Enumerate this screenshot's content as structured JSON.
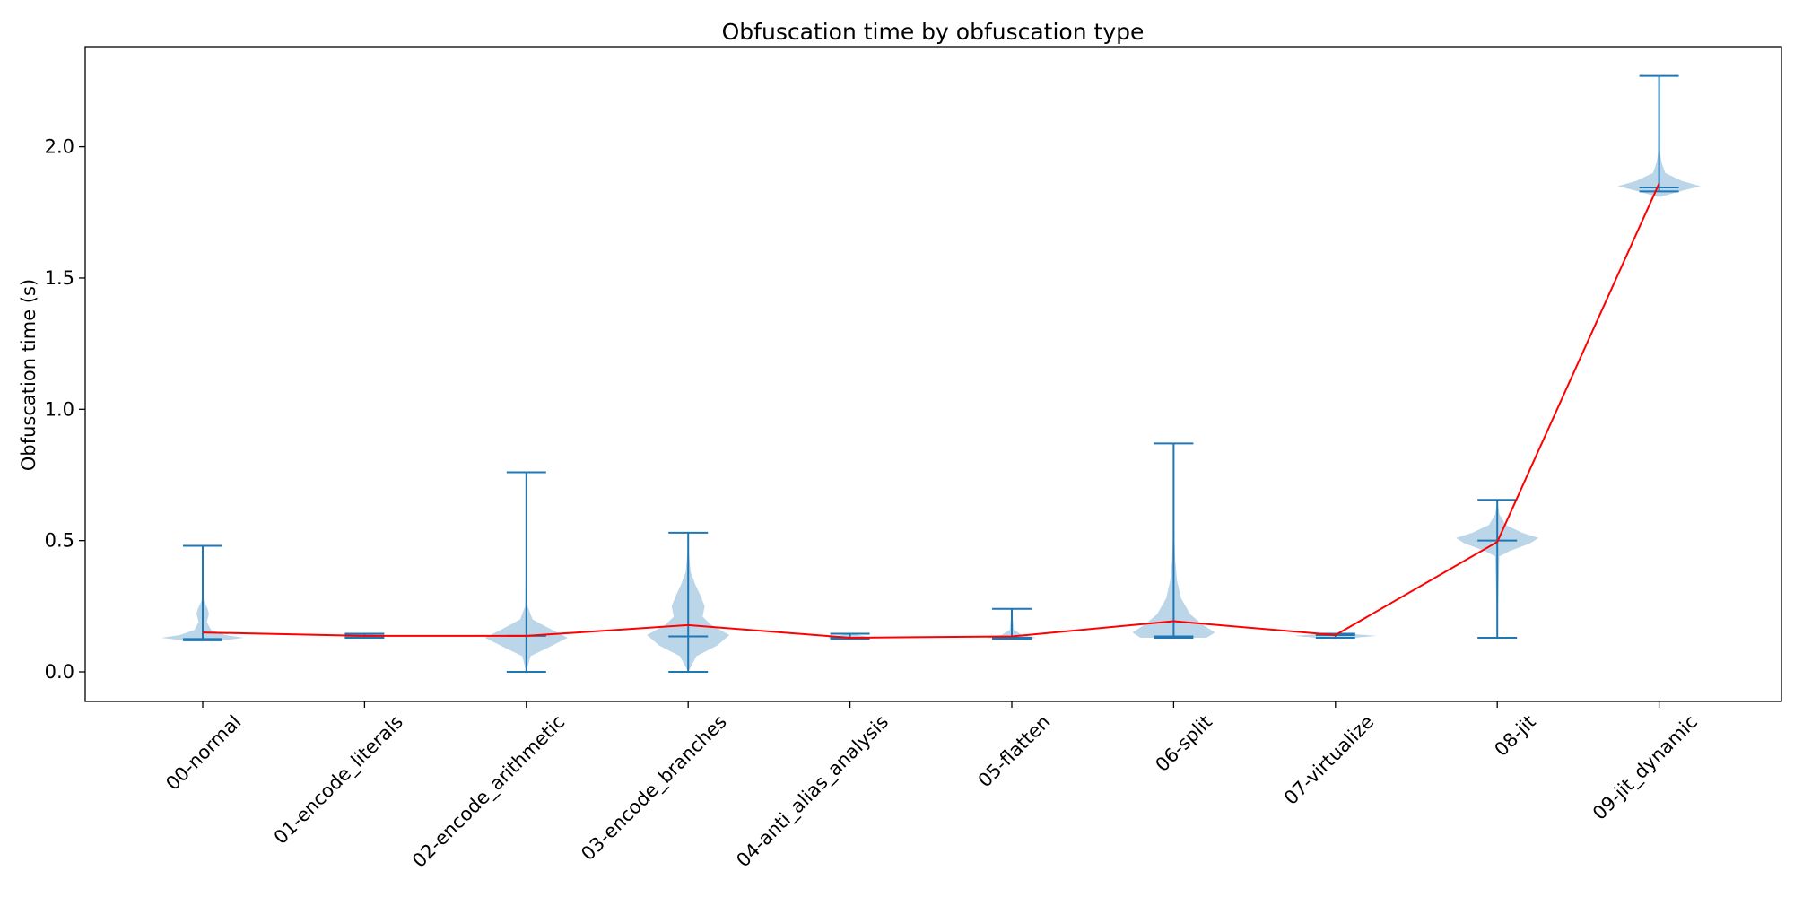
{
  "chart_data": {
    "type": "violin",
    "title": "Obfuscation time by obfuscation type",
    "xlabel": "",
    "ylabel": "Obfuscation time (s)",
    "ylim": [
      -0.11,
      2.38
    ],
    "yticks": [
      0.0,
      0.5,
      1.0,
      1.5,
      2.0
    ],
    "ytick_labels": [
      "0.0",
      "0.5",
      "1.0",
      "1.5",
      "2.0"
    ],
    "grid": false,
    "legend": "none",
    "colors": {
      "violin": "#1f77b4",
      "mean_line": "#ff0000"
    },
    "categories": [
      "00-normal",
      "01-encode_literals",
      "02-encode_arithmetic",
      "03-encode_branches",
      "04-anti_alias_analysis",
      "05-flatten",
      "06-split",
      "07-virtualize",
      "08-jit",
      "09-jit_dynamic"
    ],
    "series": [
      {
        "min": 0.12,
        "max": 0.48,
        "median": 0.125,
        "mean": 0.15,
        "density": [
          [
            0.12,
            0.5
          ],
          [
            0.13,
            1.0
          ],
          [
            0.14,
            0.55
          ],
          [
            0.16,
            0.2
          ],
          [
            0.19,
            0.1
          ],
          [
            0.22,
            0.15
          ],
          [
            0.24,
            0.12
          ],
          [
            0.27,
            0.03
          ],
          [
            0.3,
            0.01
          ],
          [
            0.48,
            0.0
          ]
        ]
      },
      {
        "min": 0.13,
        "max": 0.145,
        "median": 0.137,
        "mean": 0.137,
        "density": [
          [
            0.13,
            0.1
          ],
          [
            0.137,
            0.35
          ],
          [
            0.145,
            0.1
          ]
        ]
      },
      {
        "min": 0.0,
        "max": 0.76,
        "median": 0.137,
        "mean": 0.137,
        "density": [
          [
            0.0,
            0.0
          ],
          [
            0.06,
            0.1
          ],
          [
            0.09,
            0.5
          ],
          [
            0.13,
            1.0
          ],
          [
            0.17,
            0.5
          ],
          [
            0.2,
            0.15
          ],
          [
            0.25,
            0.03
          ],
          [
            0.4,
            0.01
          ],
          [
            0.76,
            0.0
          ]
        ]
      },
      {
        "min": 0.0,
        "max": 0.53,
        "median": 0.135,
        "mean": 0.178,
        "density": [
          [
            0.0,
            0.0
          ],
          [
            0.06,
            0.2
          ],
          [
            0.1,
            0.7
          ],
          [
            0.14,
            1.0
          ],
          [
            0.18,
            0.55
          ],
          [
            0.21,
            0.35
          ],
          [
            0.25,
            0.4
          ],
          [
            0.29,
            0.3
          ],
          [
            0.33,
            0.18
          ],
          [
            0.38,
            0.06
          ],
          [
            0.45,
            0.02
          ],
          [
            0.53,
            0.0
          ]
        ]
      },
      {
        "min": 0.125,
        "max": 0.145,
        "median": 0.13,
        "mean": 0.13,
        "density": [
          [
            0.125,
            0.4
          ],
          [
            0.13,
            0.55
          ],
          [
            0.137,
            0.3
          ],
          [
            0.145,
            0.05
          ]
        ]
      },
      {
        "min": 0.125,
        "max": 0.24,
        "median": 0.13,
        "mean": 0.135,
        "density": [
          [
            0.125,
            0.3
          ],
          [
            0.13,
            0.6
          ],
          [
            0.14,
            0.25
          ],
          [
            0.16,
            0.05
          ],
          [
            0.24,
            0.0
          ]
        ]
      },
      {
        "min": 0.13,
        "max": 0.87,
        "median": 0.135,
        "mean": 0.193,
        "density": [
          [
            0.13,
            0.8
          ],
          [
            0.15,
            1.0
          ],
          [
            0.18,
            0.7
          ],
          [
            0.22,
            0.4
          ],
          [
            0.28,
            0.18
          ],
          [
            0.35,
            0.08
          ],
          [
            0.42,
            0.04
          ],
          [
            0.55,
            0.01
          ],
          [
            0.87,
            0.0
          ]
        ]
      },
      {
        "min": 0.13,
        "max": 0.145,
        "median": 0.14,
        "mean": 0.14,
        "density": [
          [
            0.13,
            0.45
          ],
          [
            0.137,
            1.0
          ],
          [
            0.145,
            0.3
          ]
        ]
      },
      {
        "min": 0.13,
        "max": 0.655,
        "median": 0.5,
        "mean": 0.495,
        "density": [
          [
            0.13,
            0.0
          ],
          [
            0.44,
            0.05
          ],
          [
            0.46,
            0.3
          ],
          [
            0.49,
            0.8
          ],
          [
            0.51,
            1.0
          ],
          [
            0.53,
            0.6
          ],
          [
            0.56,
            0.2
          ],
          [
            0.6,
            0.05
          ],
          [
            0.655,
            0.0
          ]
        ]
      },
      {
        "min": 1.83,
        "max": 2.27,
        "median": 1.845,
        "mean": 1.86,
        "density": [
          [
            1.81,
            0.05
          ],
          [
            1.83,
            0.5
          ],
          [
            1.85,
            1.0
          ],
          [
            1.87,
            0.55
          ],
          [
            1.9,
            0.15
          ],
          [
            1.94,
            0.06
          ],
          [
            1.98,
            0.02
          ],
          [
            2.27,
            0.0
          ]
        ]
      }
    ]
  }
}
